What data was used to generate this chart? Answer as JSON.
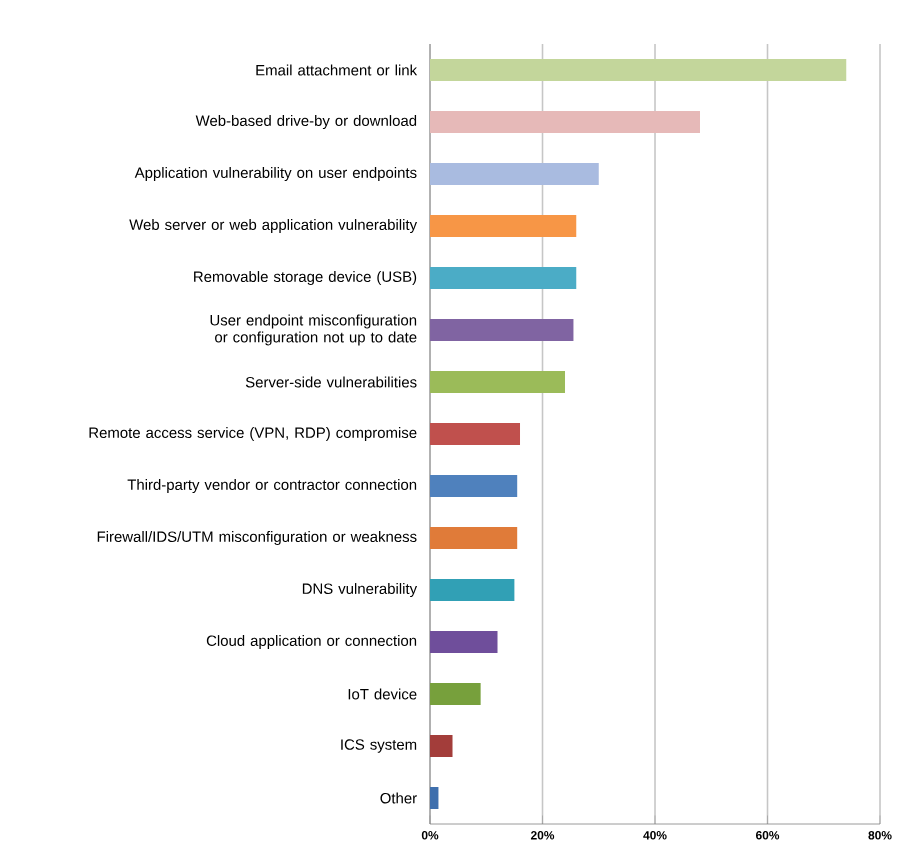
{
  "chart_data": {
    "type": "bar",
    "orientation": "horizontal",
    "categories": [
      "Email attachment or link",
      "Web-based drive-by or download",
      "Application vulnerability on user endpoints",
      "Web server or web application vulnerability",
      "Removable storage device (USB)",
      "User endpoint misconfiguration or configuration not up to date",
      "Server-side vulnerabilities",
      "Remote access service (VPN, RDP) compromise",
      "Third-party vendor or contractor connection",
      "Firewall/IDS/UTM misconfiguration or weakness",
      "DNS vulnerability",
      "Cloud application or connection",
      "IoT device",
      "ICS system",
      "Other"
    ],
    "values": [
      74,
      48,
      30,
      26,
      26,
      25.5,
      24,
      16,
      15.5,
      15.5,
      15,
      12,
      9,
      4,
      1.5
    ],
    "colors": [
      "#c3d69b",
      "#e6b9b8",
      "#a9bbe0",
      "#f79646",
      "#4bacc6",
      "#8064a2",
      "#9bbb59",
      "#c0504d",
      "#4f81bd",
      "#e07b39",
      "#31a0b5",
      "#6f4e9b",
      "#77a03c",
      "#a33d3a",
      "#3f6fad"
    ],
    "xlim": [
      0,
      80
    ],
    "xticks": [
      {
        "value": 0,
        "label": "0%"
      },
      {
        "value": 20,
        "label": "20%"
      },
      {
        "value": 40,
        "label": "40%"
      },
      {
        "value": 60,
        "label": "60%"
      },
      {
        "value": 80,
        "label": "80%"
      }
    ],
    "grid": "x"
  }
}
